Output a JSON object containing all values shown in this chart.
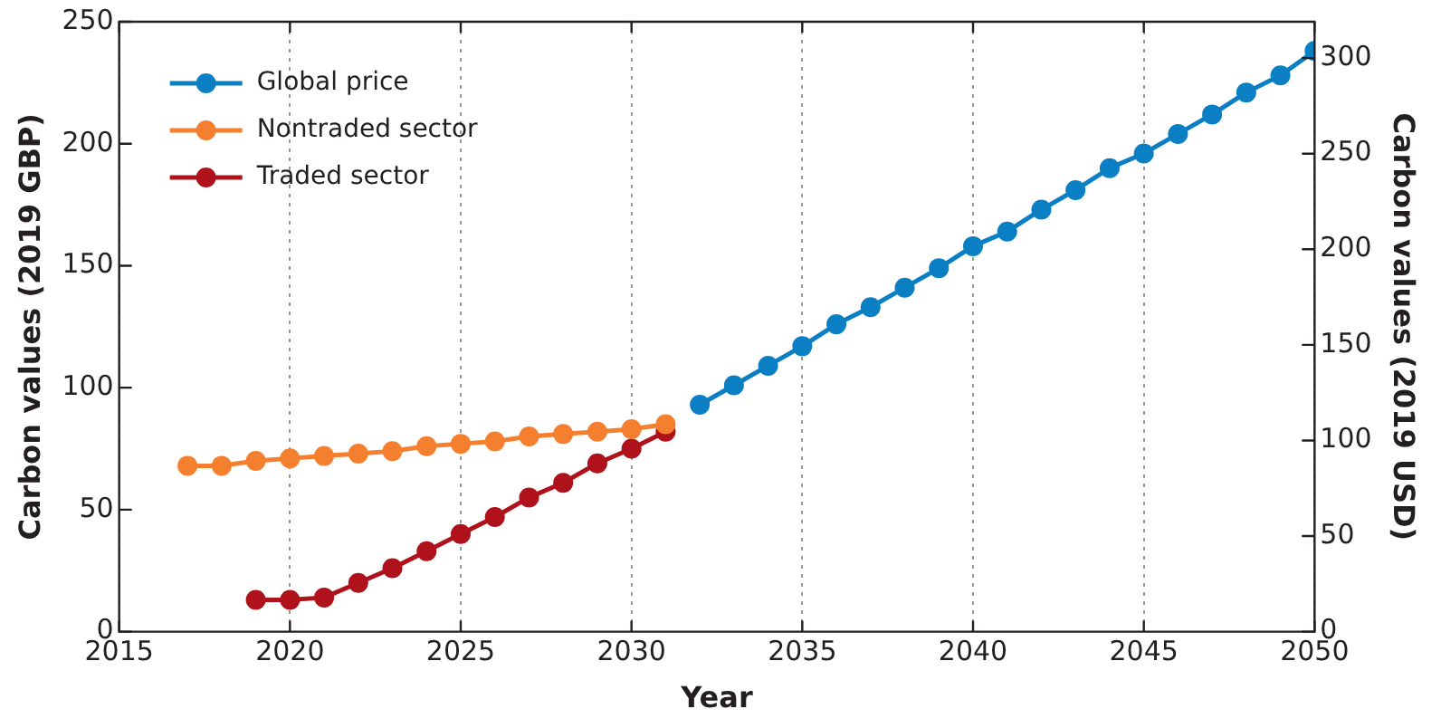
{
  "chart_data": {
    "type": "line",
    "xlabel": "Year",
    "ylabel": "Carbon values (2019 GBP)",
    "y2label": "Carbon values (2019 USD)",
    "xlim": [
      2015,
      2050
    ],
    "xticks": [
      2015,
      2020,
      2025,
      2030,
      2035,
      2040,
      2045,
      2050
    ],
    "ylim": [
      0,
      250
    ],
    "yticks": [
      0,
      50,
      100,
      150,
      200,
      250
    ],
    "y2lim": [
      0,
      319
    ],
    "y2ticks": [
      0,
      50,
      100,
      150,
      200,
      250,
      300
    ],
    "grid": "x",
    "legend": "top left",
    "marker": "circle",
    "line_style": "solid",
    "series": [
      {
        "name": "Global price",
        "color": "#0a7fc4",
        "x": [
          2032,
          2033,
          2034,
          2035,
          2036,
          2037,
          2038,
          2039,
          2040,
          2041,
          2042,
          2043,
          2044,
          2045,
          2046,
          2047,
          2048,
          2049,
          2050
        ],
        "values": [
          93,
          101,
          109,
          117,
          126,
          133,
          141,
          149,
          158,
          164,
          173,
          181,
          190,
          196,
          204,
          212,
          221,
          228,
          238
        ]
      },
      {
        "name": "Nontraded sector",
        "color": "#f47f2f",
        "x": [
          2017,
          2018,
          2019,
          2020,
          2021,
          2022,
          2023,
          2024,
          2025,
          2026,
          2027,
          2028,
          2029,
          2030,
          2031
        ],
        "values": [
          68,
          68,
          70,
          71,
          72,
          73,
          74,
          76,
          77,
          78,
          80,
          81,
          82,
          83,
          85
        ]
      },
      {
        "name": "Traded sector",
        "color": "#b0121b",
        "x": [
          2019,
          2020,
          2021,
          2022,
          2023,
          2024,
          2025,
          2026,
          2027,
          2028,
          2029,
          2030,
          2031
        ],
        "values": [
          13,
          13,
          14,
          20,
          26,
          33,
          40,
          47,
          55,
          61,
          69,
          75,
          82
        ]
      }
    ]
  }
}
